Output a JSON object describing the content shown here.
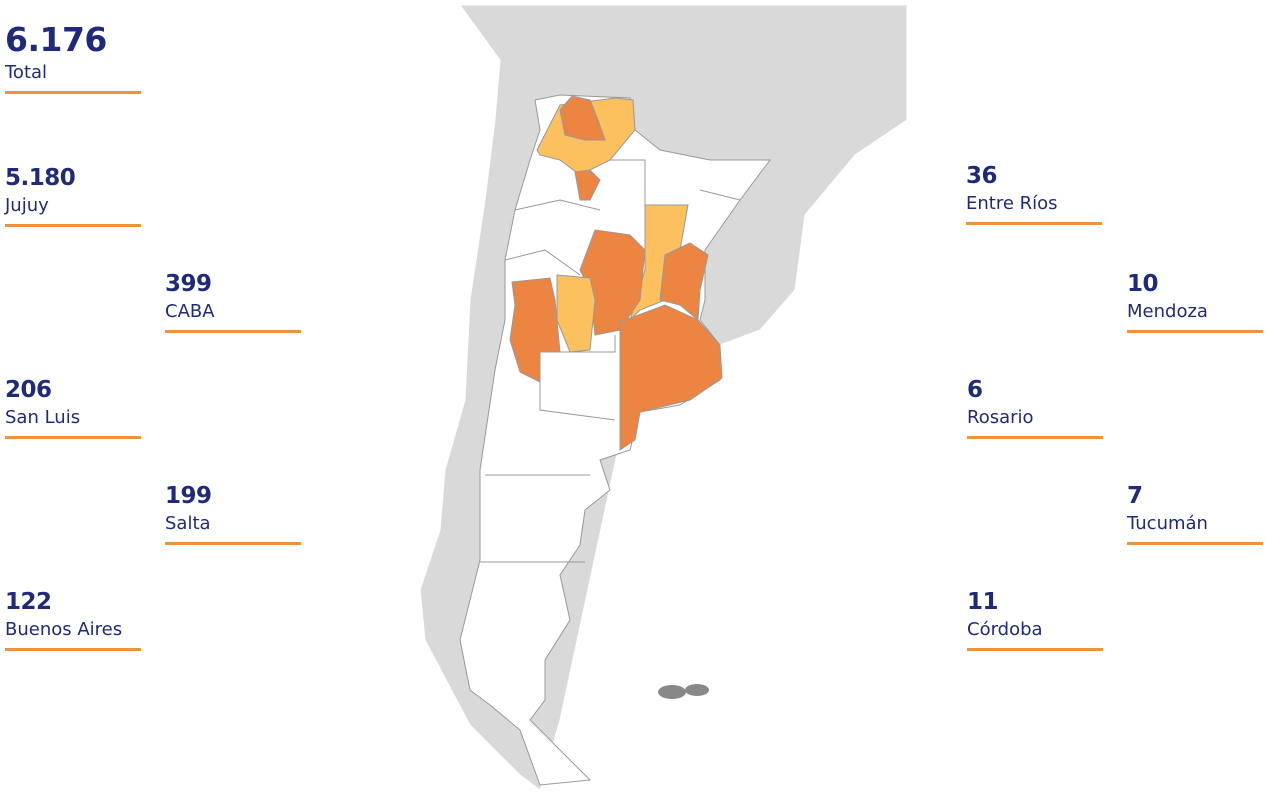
{
  "stats": [
    {
      "value": "6.176",
      "label": "Total"
    },
    {
      "value": "5.180",
      "label": "Jujuy"
    },
    {
      "value": "399",
      "label": "CABA"
    },
    {
      "value": "206",
      "label": "San Luis"
    },
    {
      "value": "199",
      "label": "Salta"
    },
    {
      "value": "122",
      "label": "Buenos Aires"
    },
    {
      "value": "36",
      "label": "Entre Ríos"
    },
    {
      "value": "10",
      "label": "Mendoza"
    },
    {
      "value": "6",
      "label": "Rosario"
    },
    {
      "value": "7",
      "label": "Tucumán"
    },
    {
      "value": "11",
      "label": "Córdoba"
    }
  ]
}
